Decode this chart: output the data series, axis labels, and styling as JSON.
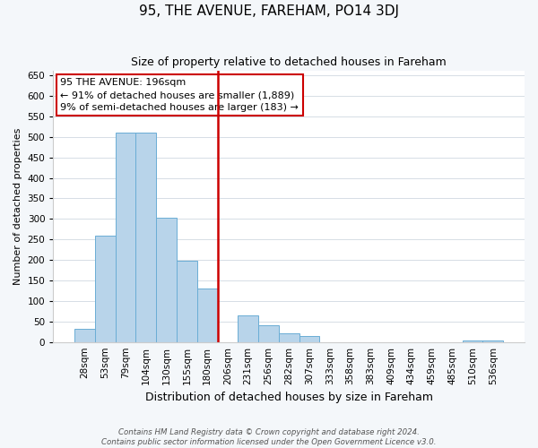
{
  "title": "95, THE AVENUE, FAREHAM, PO14 3DJ",
  "subtitle": "Size of property relative to detached houses in Fareham",
  "xlabel": "Distribution of detached houses by size in Fareham",
  "ylabel": "Number of detached properties",
  "bar_labels": [
    "28sqm",
    "53sqm",
    "79sqm",
    "104sqm",
    "130sqm",
    "155sqm",
    "180sqm",
    "206sqm",
    "231sqm",
    "256sqm",
    "282sqm",
    "307sqm",
    "333sqm",
    "358sqm",
    "383sqm",
    "409sqm",
    "434sqm",
    "459sqm",
    "485sqm",
    "510sqm",
    "536sqm"
  ],
  "bar_values": [
    32,
    260,
    510,
    510,
    303,
    197,
    130,
    0,
    65,
    40,
    22,
    15,
    0,
    0,
    0,
    0,
    0,
    0,
    0,
    3,
    3
  ],
  "bar_color": "#b8d4ea",
  "bar_edge_color": "#6aadd5",
  "highlight_line_color": "#cc0000",
  "annotation_text_line1": "95 THE AVENUE: 196sqm",
  "annotation_text_line2": "← 91% of detached houses are smaller (1,889)",
  "annotation_text_line3": "9% of semi-detached houses are larger (183) →",
  "annotation_box_color": "#ffffff",
  "annotation_box_edge": "#cc0000",
  "ylim": [
    0,
    660
  ],
  "yticks": [
    0,
    50,
    100,
    150,
    200,
    250,
    300,
    350,
    400,
    450,
    500,
    550,
    600,
    650
  ],
  "footer_line1": "Contains HM Land Registry data © Crown copyright and database right 2024.",
  "footer_line2": "Contains public sector information licensed under the Open Government Licence v3.0.",
  "background_color": "#f4f7fa",
  "plot_background_color": "#ffffff",
  "title_fontsize": 11,
  "subtitle_fontsize": 9,
  "ylabel_fontsize": 8,
  "xlabel_fontsize": 9,
  "tick_fontsize": 7.5,
  "annotation_fontsize": 8
}
